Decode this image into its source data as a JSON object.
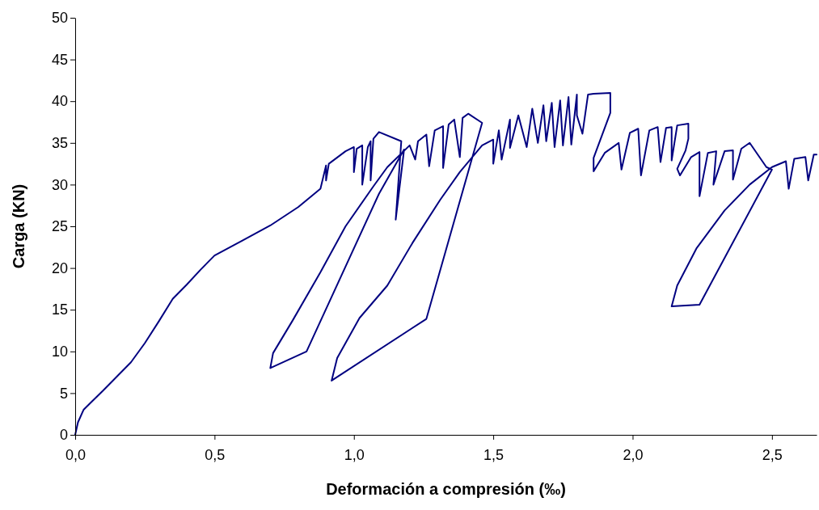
{
  "chart_data": {
    "type": "line",
    "xlabel": "Deformación a compresión (‰)",
    "ylabel": "Carga (KN)",
    "xlim": [
      0,
      2.66
    ],
    "ylim": [
      0,
      50
    ],
    "xticks": [
      {
        "value": 0,
        "label": "0,0"
      },
      {
        "value": 0.5,
        "label": "0,5"
      },
      {
        "value": 1,
        "label": "1,0"
      },
      {
        "value": 1.5,
        "label": "1,5"
      },
      {
        "value": 2,
        "label": "2,0"
      },
      {
        "value": 2.5,
        "label": "2,5"
      }
    ],
    "yticks": [
      0,
      5,
      10,
      15,
      20,
      25,
      30,
      35,
      40,
      45,
      50
    ],
    "grid": false,
    "marker": "none",
    "line_style": "solid",
    "series": [
      {
        "color": "#000080",
        "x": [
          0,
          0.01,
          0.03,
          0.06,
          0.1,
          0.15,
          0.2,
          0.25,
          0.3,
          0.35,
          0.4,
          0.45,
          0.5,
          0.6,
          0.7,
          0.8,
          0.88,
          0.9,
          0.9,
          0.91,
          0.97,
          1.0,
          1.0,
          1.01,
          1.03,
          1.03,
          1.05,
          1.06,
          1.06,
          1.07,
          1.09,
          1.17,
          1.15,
          1.18,
          1.09,
          0.83,
          0.7,
          0.71,
          0.78,
          0.88,
          0.97,
          1.07,
          1.12,
          1.2,
          1.22,
          1.23,
          1.26,
          1.27,
          1.29,
          1.32,
          1.32,
          1.34,
          1.36,
          1.38,
          1.39,
          1.41,
          1.46,
          1.26,
          0.92,
          0.94,
          1.02,
          1.12,
          1.21,
          1.31,
          1.38,
          1.46,
          1.5,
          1.5,
          1.52,
          1.53,
          1.56,
          1.56,
          1.59,
          1.62,
          1.64,
          1.66,
          1.68,
          1.69,
          1.71,
          1.72,
          1.74,
          1.75,
          1.77,
          1.78,
          1.8,
          1.8,
          1.82,
          1.84,
          1.86,
          1.92,
          1.92,
          1.86,
          1.86,
          1.9,
          1.95,
          1.96,
          1.99,
          2.02,
          2.03,
          2.06,
          2.09,
          2.1,
          2.12,
          2.14,
          2.14,
          2.16,
          2.2,
          2.2,
          2.19,
          2.16,
          2.17,
          2.21,
          2.24,
          2.24,
          2.27,
          2.3,
          2.29,
          2.33,
          2.36,
          2.36,
          2.39,
          2.42,
          2.48,
          2.5,
          2.24,
          2.14,
          2.16,
          2.23,
          2.33,
          2.42,
          2.5,
          2.55,
          2.56,
          2.58,
          2.62,
          2.63,
          2.65,
          2.66
        ],
        "values": [
          0,
          1.5,
          3,
          4,
          5.3,
          7,
          8.7,
          11,
          13.6,
          16.3,
          18,
          19.8,
          21.5,
          23.3,
          25.1,
          27.3,
          29.5,
          32.3,
          30.5,
          32.5,
          34,
          34.5,
          31.5,
          34.3,
          34.7,
          30,
          34.5,
          35.2,
          30.5,
          35.5,
          36.3,
          35.2,
          25.8,
          34.2,
          28.9,
          10,
          8,
          9.8,
          13.7,
          19.5,
          25,
          29.8,
          32.1,
          34.7,
          33,
          35.2,
          36,
          32.2,
          36.5,
          37,
          32,
          37.2,
          37.8,
          33.3,
          38,
          38.5,
          37.4,
          13.9,
          6.5,
          9.2,
          14,
          17.9,
          23,
          28.2,
          31.5,
          34.7,
          35.4,
          32.5,
          36.5,
          33,
          37.8,
          34.4,
          38.3,
          34.5,
          39.1,
          35,
          39.5,
          35.2,
          39.8,
          34.5,
          40.1,
          34.7,
          40.5,
          34.8,
          40.8,
          38.3,
          36.1,
          40.8,
          40.9,
          41,
          38.6,
          33.2,
          31.6,
          33.8,
          35,
          31.8,
          36.2,
          36.7,
          31.1,
          36.5,
          36.9,
          32.7,
          36.8,
          36.9,
          32.9,
          37.1,
          37.3,
          35.5,
          34.1,
          31.9,
          31.1,
          33.3,
          33.9,
          28.6,
          33.8,
          34,
          30,
          34,
          34.1,
          30.6,
          34.3,
          35,
          32.1,
          31.8,
          15.6,
          15.4,
          17.9,
          22.4,
          26.9,
          30,
          32.1,
          32.8,
          29.5,
          33.1,
          33.3,
          30.5,
          33.6,
          33.6
        ]
      }
    ]
  }
}
